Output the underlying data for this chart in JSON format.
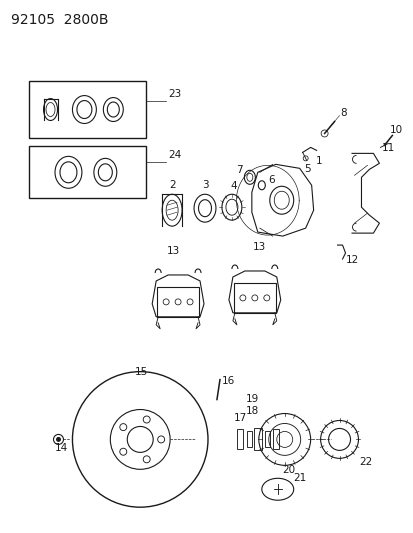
{
  "title": "92105  2800B",
  "bg_color": "#ffffff",
  "line_color": "#1a1a1a",
  "title_fontsize": 10,
  "label_fontsize": 7.5,
  "fig_width": 4.14,
  "fig_height": 5.33,
  "dpi": 100
}
